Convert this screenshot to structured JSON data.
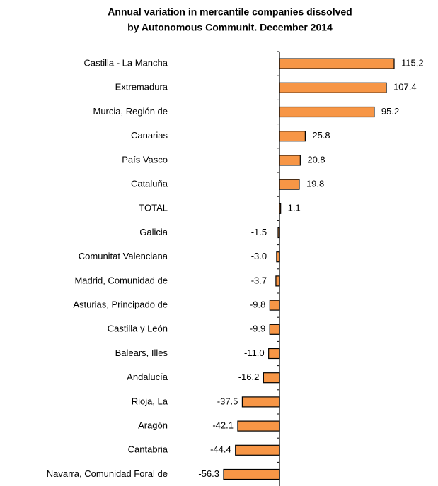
{
  "chart_data": {
    "type": "barh",
    "title": [
      "Annual variation in  mercantile companies dissolved",
      "by Autonomous Communit. December 2014"
    ],
    "categories": [
      "Castilla - La Mancha",
      "Extremadura",
      "Murcia, Región de",
      "Canarias",
      "País Vasco",
      "Cataluña",
      "TOTAL",
      "Galicia",
      "Comunitat Valenciana",
      "Madrid, Comunidad de",
      "Asturias, Principado de",
      "Castilla y León",
      "Balears, Illes",
      "Andalucía",
      "Rioja, La",
      "Aragón",
      "Cantabria",
      "Navarra, Comunidad Foral de"
    ],
    "values": [
      115.2,
      107.4,
      95.2,
      25.8,
      20.8,
      19.8,
      1.1,
      -1.5,
      -3.0,
      -3.7,
      -9.8,
      -9.9,
      -11.0,
      -16.2,
      -37.5,
      -42.1,
      -44.4,
      -56.3
    ],
    "value_labels": [
      "115,2",
      "107.4",
      "95.2",
      "25.8",
      "20.8",
      "19.8",
      "1.1",
      "-1.5",
      "-3.0",
      "-3.7",
      "-9.8",
      "-9.9",
      "-11.0",
      "-16.2",
      "-37.5",
      "-42.1",
      "-44.4",
      "-56.3"
    ],
    "color": "#f79646"
  }
}
